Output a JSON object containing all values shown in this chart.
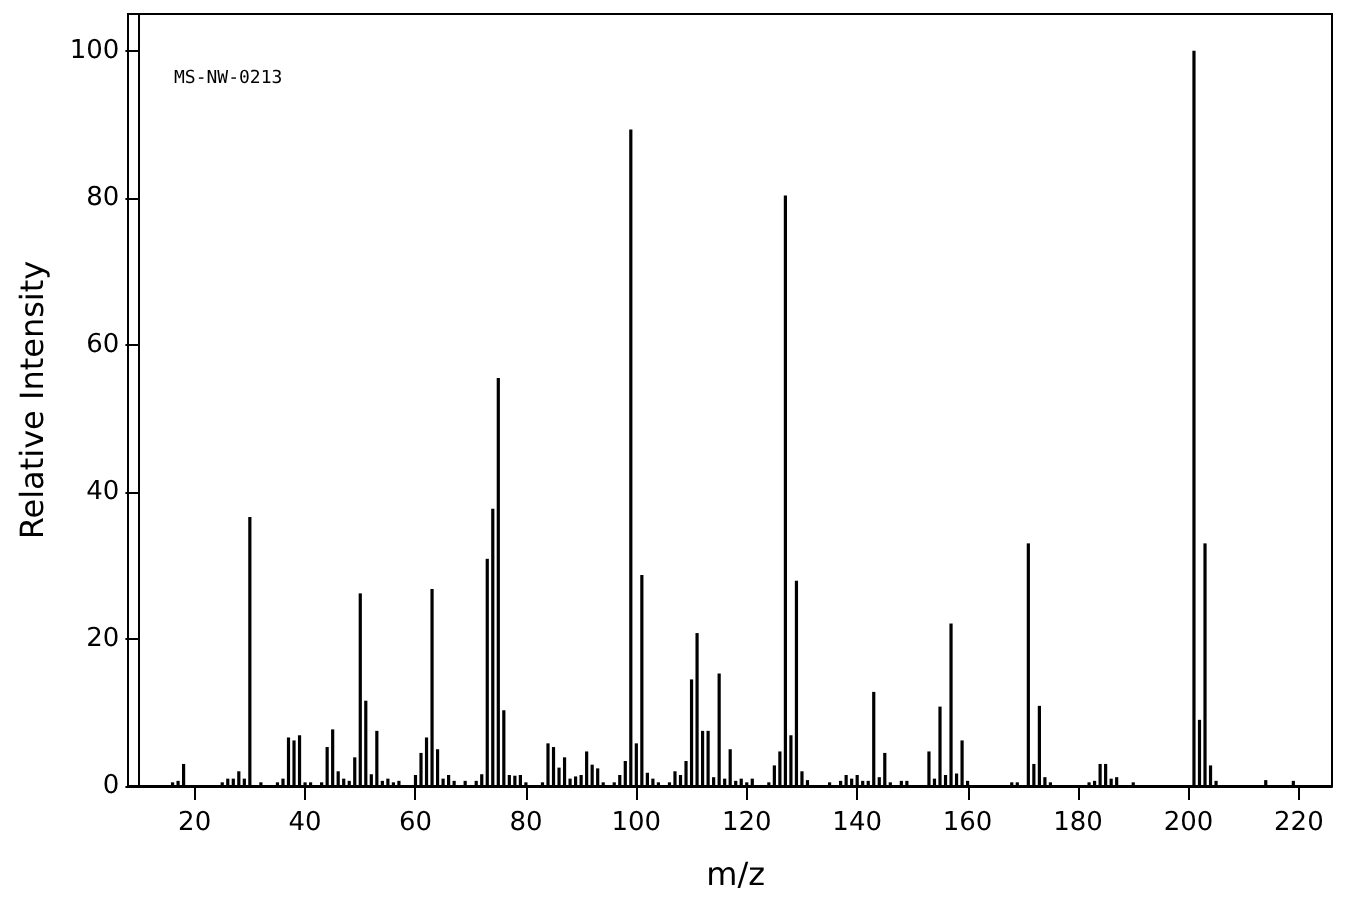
{
  "chart_data": {
    "type": "bar",
    "xlabel": "m/z",
    "ylabel": "Relative Intensity",
    "annotations": [
      "MS-NW-0213"
    ],
    "x": [
      16,
      17,
      18,
      25,
      26,
      27,
      28,
      29,
      30,
      32,
      35,
      36,
      37,
      38,
      39,
      40,
      41,
      43,
      44,
      45,
      46,
      47,
      48,
      49,
      50,
      51,
      52,
      53,
      54,
      55,
      56,
      57,
      60,
      61,
      62,
      63,
      64,
      65,
      66,
      67,
      69,
      71,
      72,
      73,
      74,
      75,
      76,
      77,
      78,
      79,
      80,
      83,
      84,
      85,
      86,
      87,
      88,
      89,
      90,
      91,
      92,
      93,
      94,
      96,
      97,
      98,
      99,
      100,
      101,
      102,
      103,
      104,
      106,
      107,
      108,
      109,
      110,
      111,
      112,
      113,
      114,
      115,
      116,
      117,
      118,
      119,
      120,
      121,
      124,
      125,
      126,
      127,
      128,
      129,
      130,
      131,
      135,
      137,
      138,
      139,
      140,
      141,
      142,
      143,
      144,
      145,
      146,
      148,
      149,
      153,
      154,
      155,
      156,
      157,
      158,
      159,
      160,
      168,
      169,
      171,
      172,
      173,
      174,
      175,
      182,
      183,
      184,
      185,
      186,
      187,
      190,
      201,
      202,
      203,
      204,
      205,
      214,
      219
    ],
    "values": [
      0.5,
      0.7,
      3,
      0.5,
      1,
      1,
      2,
      1,
      36.6,
      0.5,
      0.5,
      1,
      6.6,
      6.2,
      6.9,
      0.5,
      0.5,
      0.5,
      5.3,
      7.7,
      2,
      1,
      0.7,
      3.9,
      26.2,
      11.6,
      1.6,
      7.5,
      0.7,
      1,
      0.5,
      0.7,
      1.5,
      4.5,
      6.6,
      26.8,
      5,
      1,
      1.5,
      0.7,
      0.7,
      0.7,
      1.6,
      30.9,
      37.7,
      55.5,
      10.3,
      1.5,
      1.4,
      1.5,
      0.5,
      0.5,
      5.8,
      5.3,
      2.5,
      3.9,
      1,
      1.3,
      1.5,
      4.7,
      2.9,
      2.4,
      0.5,
      0.5,
      1.5,
      3.4,
      89.3,
      5.8,
      28.7,
      1.8,
      1,
      0.5,
      0.5,
      2,
      1.5,
      3.4,
      14.5,
      20.8,
      7.5,
      7.5,
      1.2,
      15.3,
      1,
      5,
      0.7,
      1,
      0.5,
      1,
      0.5,
      2.8,
      4.7,
      80.3,
      6.9,
      27.9,
      2,
      0.8,
      0.5,
      0.7,
      1.5,
      1,
      1.5,
      0.7,
      0.7,
      12.8,
      1.2,
      4.5,
      0.5,
      0.7,
      0.7,
      4.7,
      1,
      10.8,
      1.5,
      22.1,
      1.7,
      6.2,
      0.7,
      0.5,
      0.5,
      33,
      3,
      10.9,
      1.2,
      0.5,
      0.5,
      0.7,
      3,
      3,
      1,
      1.2,
      0.5,
      100,
      9,
      33,
      2.8,
      0.7,
      0.8,
      0.7
    ],
    "color": "#000000",
    "xlim": [
      10,
      226
    ],
    "xticks": [
      20,
      40,
      60,
      80,
      100,
      120,
      140,
      160,
      180,
      200,
      220
    ],
    "ylim": [
      0,
      105
    ],
    "yticks": [
      0,
      20,
      40,
      60,
      80,
      100
    ],
    "grid": false
  }
}
